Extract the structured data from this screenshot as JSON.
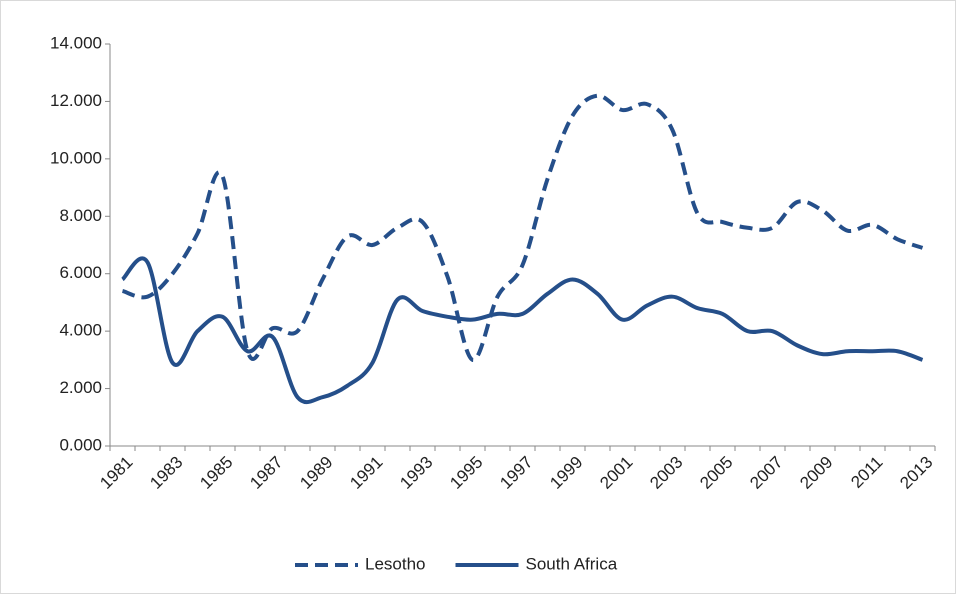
{
  "chart_data": {
    "type": "line",
    "categories": [
      "1981",
      null,
      "1983",
      null,
      "1985",
      null,
      "1987",
      null,
      "1989",
      null,
      "1991",
      null,
      "1993",
      null,
      "1995",
      null,
      "1997",
      null,
      "1999",
      null,
      "2001",
      null,
      "2003",
      null,
      "2005",
      null,
      "2007",
      null,
      "2009",
      null,
      "2011",
      null,
      "2013"
    ],
    "series": [
      {
        "name": "Lesotho",
        "color": "#254f8a",
        "line_style": "dashed",
        "values": [
          5400,
          5200,
          6000,
          7400,
          9400,
          3300,
          4100,
          4000,
          5800,
          7300,
          7000,
          7600,
          7800,
          5900,
          3000,
          5200,
          6300,
          9300,
          11500,
          12200,
          11700,
          11900,
          11000,
          8100,
          7800,
          7600,
          7600,
          8500,
          8200,
          7500,
          7700,
          7200,
          6900
        ]
      },
      {
        "name": "South Africa",
        "color": "#254f8a",
        "line_style": "solid",
        "values": [
          5800,
          6400,
          2900,
          4000,
          4500,
          3300,
          3800,
          1700,
          1700,
          2100,
          2900,
          5100,
          4700,
          4500,
          4400,
          4600,
          4600,
          5300,
          5800,
          5300,
          4400,
          4900,
          5200,
          4800,
          4600,
          4000,
          4000,
          3500,
          3200,
          3300,
          3300,
          3300,
          3000
        ]
      }
    ],
    "ylim": [
      0,
      14000
    ],
    "yticks": [
      {
        "value": 0,
        "label": "0.000"
      },
      {
        "value": 2000,
        "label": "2.000"
      },
      {
        "value": 4000,
        "label": "4.000"
      },
      {
        "value": 6000,
        "label": "6.000"
      },
      {
        "value": 8000,
        "label": "8.000"
      },
      {
        "value": 10000,
        "label": "10.000"
      },
      {
        "value": 12000,
        "label": "12.000"
      },
      {
        "value": 14000,
        "label": "14.000"
      }
    ],
    "legend": "bottom"
  }
}
